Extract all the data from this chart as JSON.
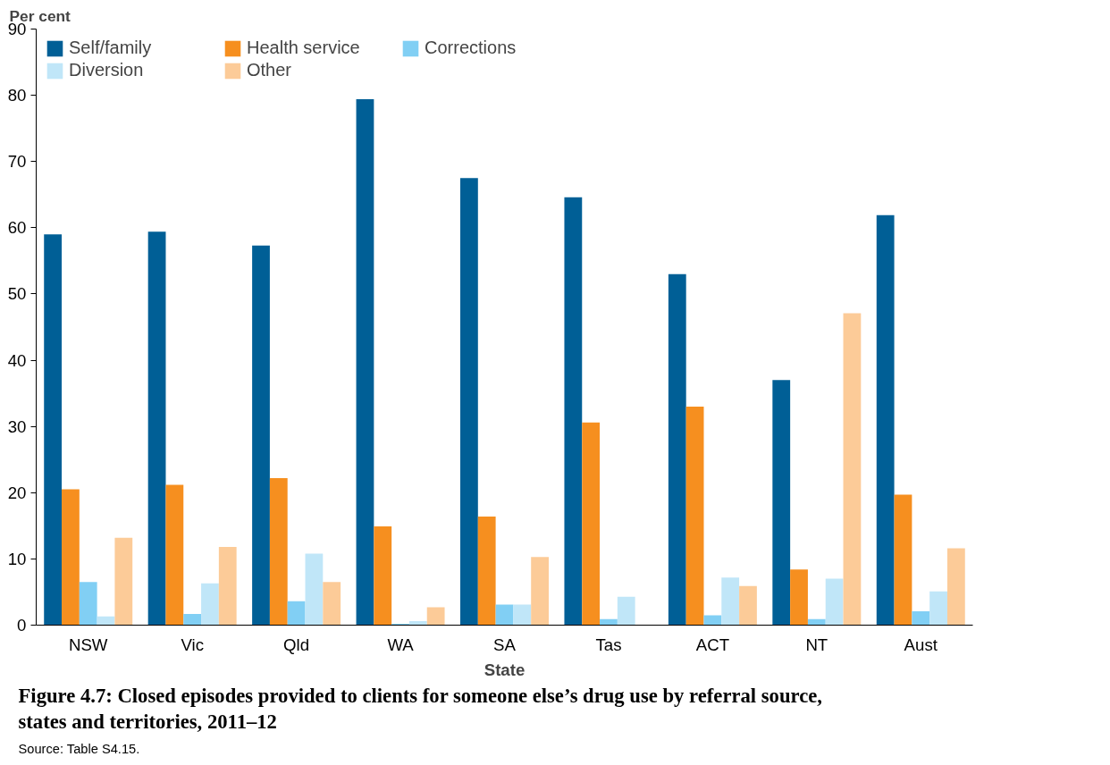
{
  "chart_data": {
    "type": "bar",
    "title": "Figure 4.7: Closed episodes provided to clients for someone else’s drug use by referral source, states and territories, 2011–12",
    "ylabel": "Per cent",
    "xlabel": "State",
    "categories": [
      "NSW",
      "Vic",
      "Qld",
      "WA",
      "SA",
      "Tas",
      "ACT",
      "NT",
      "Aust"
    ],
    "series": [
      {
        "name": "Self/family",
        "color": "#005f96",
        "values": [
          59.0,
          59.4,
          57.3,
          79.4,
          67.5,
          64.6,
          53.0,
          37.0,
          61.9
        ]
      },
      {
        "name": "Health service",
        "color": "#f68f1f",
        "values": [
          20.5,
          21.2,
          22.2,
          14.9,
          16.4,
          30.6,
          33.0,
          8.4,
          19.7
        ]
      },
      {
        "name": "Corrections",
        "color": "#81cff4",
        "values": [
          6.5,
          1.7,
          3.6,
          0.2,
          3.1,
          0.9,
          1.5,
          0.9,
          2.1
        ]
      },
      {
        "name": "Diversion",
        "color": "#c0e6f8",
        "values": [
          1.3,
          6.3,
          10.8,
          0.6,
          3.1,
          4.3,
          7.2,
          7.0,
          5.1
        ]
      },
      {
        "name": "Other",
        "color": "#fccb98",
        "values": [
          13.2,
          11.8,
          6.5,
          2.7,
          10.3,
          0,
          5.9,
          47.1,
          11.6
        ]
      }
    ],
    "ylim": [
      0,
      90
    ],
    "yticks": [
      0,
      10,
      20,
      30,
      40,
      50,
      60,
      70,
      80,
      90
    ],
    "grid": false,
    "legend": "top left",
    "annotations": [
      "Source: Table S4.15."
    ]
  }
}
